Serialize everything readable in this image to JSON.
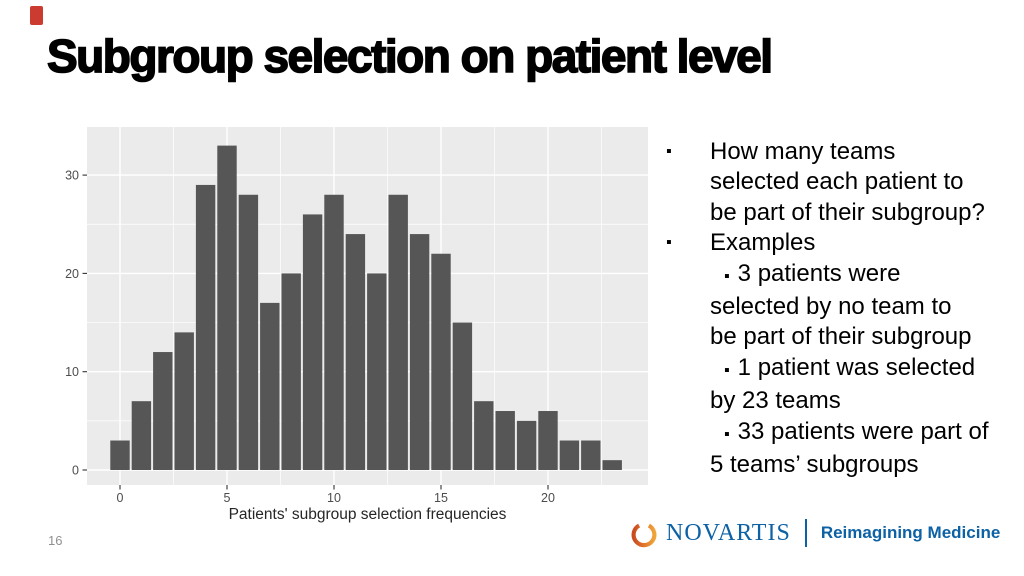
{
  "slide": {
    "title": "Subgroup selection on patient level",
    "accent_color": "#CB3B30",
    "background": "#FFFFFF"
  },
  "chart_data": {
    "type": "bar",
    "title": "",
    "xlabel": "Patients' subgroup selection frequencies",
    "ylabel": "",
    "x": [
      0,
      1,
      2,
      3,
      4,
      5,
      6,
      7,
      8,
      9,
      10,
      11,
      12,
      13,
      14,
      15,
      16,
      17,
      18,
      19,
      20,
      21,
      22,
      23
    ],
    "values": [
      3,
      7,
      12,
      14,
      29,
      33,
      28,
      17,
      20,
      26,
      28,
      24,
      20,
      28,
      24,
      22,
      15,
      7,
      6,
      5,
      6,
      3,
      3,
      1
    ],
    "x_ticks": [
      0,
      5,
      10,
      15,
      20
    ],
    "y_ticks": [
      0,
      10,
      20,
      30
    ],
    "ylim": [
      0,
      34.8
    ],
    "grid": "white major+minor on gray panel",
    "legend": "none",
    "panel_bg": "#EBEBEB",
    "bar_fill": "#565656",
    "tick_color": "#333333",
    "tick_label_color": "#4D4D4D"
  },
  "bullets": {
    "items": [
      {
        "level": 1,
        "marker": "▪",
        "text": "How many teams\nselected each patient to\nbe part of their subgroup?"
      },
      {
        "level": 1,
        "marker": "▪",
        "text": "Examples"
      },
      {
        "level": 2,
        "marker": "▪",
        "text": "3 patients were\nselected by no team to\nbe part of their subgroup"
      },
      {
        "level": 2,
        "marker": "▪",
        "text": "1 patient was selected\nby 23 teams"
      },
      {
        "level": 2,
        "marker": "▪",
        "text": "33 patients were part of\n5 teams’ subgroups"
      }
    ]
  },
  "footer": {
    "page_number": "16",
    "logo": {
      "brand": "NOVARTIS",
      "tagline": "Reimagining Medicine",
      "blue": "#0D61A5",
      "emblem_gradient": [
        "#C94B21",
        "#E2762A",
        "#F0A43C"
      ]
    }
  }
}
